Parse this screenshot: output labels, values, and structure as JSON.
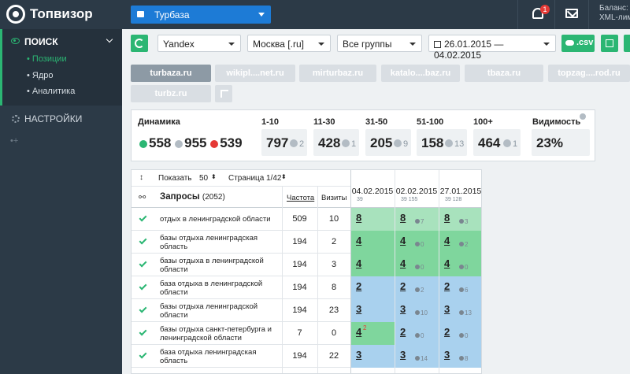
{
  "app": {
    "logo_text": "Топвизор",
    "project": "Турбаза",
    "notif_count": "1",
    "balance_line1": "Баланс:",
    "balance_line2": "XML-лим"
  },
  "sidebar": {
    "search": "ПОИСК",
    "items": [
      "• Позиции",
      "• Ядро",
      "• Аналитика"
    ],
    "settings": "НАСТРОЙКИ",
    "more": "•+"
  },
  "toolbar": {
    "engine": "Yandex",
    "region": "Москва [.ru]",
    "group": "Все группы",
    "dates": "26.01.2015 — 04.02.2015",
    "csv": ".csv"
  },
  "competitors": {
    "row1": [
      "turbaza.ru",
      "wikipl....net.ru",
      "mirturbaz.ru",
      "katalo....baz.ru",
      "tbaza.ru",
      "topzag....rod.ru"
    ],
    "row2": [
      "turbz.ru"
    ]
  },
  "dynamics": {
    "title": "Динамика",
    "up": "558",
    "same": "955",
    "down": "539",
    "buckets": [
      {
        "label": "1-10",
        "value": "797",
        "delta": "2"
      },
      {
        "label": "11-30",
        "value": "428",
        "delta": "1"
      },
      {
        "label": "31-50",
        "value": "205",
        "delta": "9"
      },
      {
        "label": "51-100",
        "value": "158",
        "delta": "13"
      },
      {
        "label": "100+",
        "value": "464",
        "delta": "1"
      }
    ],
    "visibility_label": "Видимость",
    "visibility": "23%"
  },
  "table": {
    "show": "Показать",
    "show_count": "50",
    "page": "Страница",
    "page_value": "1/42",
    "queries": "Запросы",
    "queries_count": "(2052)",
    "freq": "Частота",
    "visits": "Визиты",
    "dates": [
      {
        "date": "04.02.2015",
        "sub": "39"
      },
      {
        "date": "02.02.2015",
        "sub": "39  155"
      },
      {
        "date": "27.01.2015",
        "sub": "39  128"
      }
    ],
    "rows": [
      {
        "q": "отдых в ленинградской области",
        "freq": "509",
        "visits": "10",
        "pos": [
          {
            "v": "8",
            "s": ""
          },
          {
            "v": "8",
            "s": "7"
          },
          {
            "v": "8",
            "s": "3"
          }
        ]
      },
      {
        "q": "базы отдыха ленинградская область",
        "freq": "194",
        "visits": "2",
        "pos": [
          {
            "v": "4",
            "s": ""
          },
          {
            "v": "4",
            "s": "0"
          },
          {
            "v": "4",
            "s": "2"
          }
        ]
      },
      {
        "q": "базы отдыха в ленинградской области",
        "freq": "194",
        "visits": "3",
        "pos": [
          {
            "v": "4",
            "s": ""
          },
          {
            "v": "4",
            "s": "0"
          },
          {
            "v": "4",
            "s": "0"
          }
        ]
      },
      {
        "q": "база отдыха в ленинградской области",
        "freq": "194",
        "visits": "8",
        "pos": [
          {
            "v": "2",
            "s": ""
          },
          {
            "v": "2",
            "s": "2"
          },
          {
            "v": "2",
            "s": "6"
          }
        ]
      },
      {
        "q": "базы отдыха ленинградской области",
        "freq": "194",
        "visits": "23",
        "pos": [
          {
            "v": "3",
            "s": ""
          },
          {
            "v": "3",
            "s": "10"
          },
          {
            "v": "3",
            "s": "13"
          }
        ]
      },
      {
        "q": "базы отдыха санкт-петербурга и ленинградской области",
        "freq": "7",
        "visits": "0",
        "pos": [
          {
            "v": "4",
            "s": "",
            "d": "2"
          },
          {
            "v": "2",
            "s": "0"
          },
          {
            "v": "2",
            "s": "0"
          }
        ]
      },
      {
        "q": "база отдыха ленинградская область",
        "freq": "194",
        "visits": "22",
        "pos": [
          {
            "v": "3",
            "s": ""
          },
          {
            "v": "3",
            "s": "14"
          },
          {
            "v": "3",
            "s": "8"
          }
        ]
      }
    ]
  },
  "colors": {
    "green": "#2bb673",
    "light_green": "#a8e2bd",
    "mid_green": "#7fd69d",
    "blue": "#a9d1ee",
    "sidebar": "#2c3a47"
  }
}
